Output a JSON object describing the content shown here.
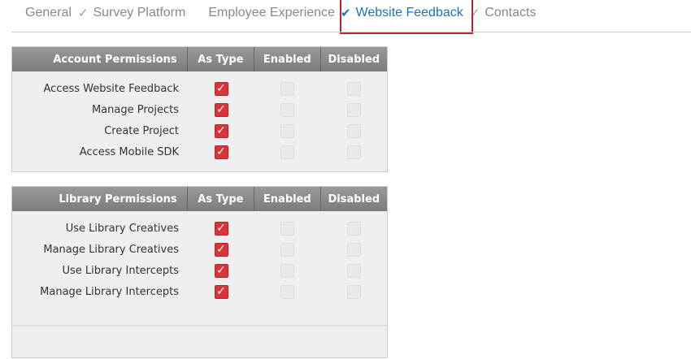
{
  "tabs": [
    {
      "label": "General",
      "checked": true
    },
    {
      "label": "Survey Platform",
      "checked": false
    },
    {
      "label": "Employee Experience",
      "checked": true
    },
    {
      "label": "Website Feedback",
      "checked": true,
      "active": true
    },
    {
      "label": "Contacts",
      "checked": false
    }
  ],
  "colors": {
    "accent": "#1a73b8",
    "highlight": "#b8232f",
    "checkbox": "#d9343b"
  },
  "columns": [
    "As Type",
    "Enabled",
    "Disabled"
  ],
  "tables": [
    {
      "title": "Account Permissions",
      "rows": [
        {
          "label": "Access Website Feedback",
          "value": "As Type"
        },
        {
          "label": "Manage Projects",
          "value": "As Type"
        },
        {
          "label": "Create Project",
          "value": "As Type"
        },
        {
          "label": "Access Mobile SDK",
          "value": "As Type"
        }
      ]
    },
    {
      "title": "Library Permissions",
      "rows": [
        {
          "label": "Use Library Creatives",
          "value": "As Type"
        },
        {
          "label": "Manage Library Creatives",
          "value": "As Type"
        },
        {
          "label": "Use Library Intercepts",
          "value": "As Type"
        },
        {
          "label": "Manage Library Intercepts",
          "value": "As Type"
        }
      ]
    }
  ]
}
